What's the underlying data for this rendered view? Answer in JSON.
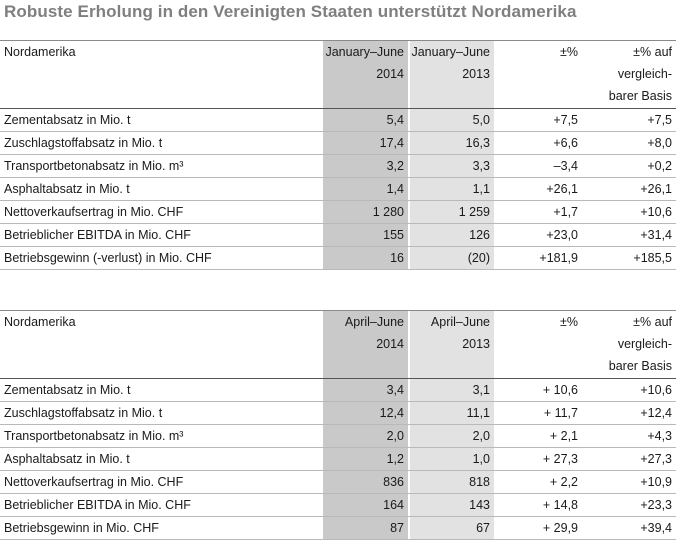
{
  "title": "Robuste Erholung in den Vereinigten Staaten unterstützt Nordamerika",
  "tables": [
    {
      "header": {
        "label": "Nordamerika",
        "col1": [
          "January–June",
          "2014"
        ],
        "col2": [
          "January–June",
          "2013"
        ],
        "col3": [
          "±%"
        ],
        "col4": [
          "±% auf",
          "vergleich-",
          "barer Basis"
        ]
      },
      "rows": [
        {
          "label": "Zementabsatz in Mio. t",
          "v1": "5,4",
          "v2": "5,0",
          "v3": "+7,5",
          "v4": "+7,5"
        },
        {
          "label": "Zuschlagstoffabsatz in Mio. t",
          "v1": "17,4",
          "v2": "16,3",
          "v3": "+6,6",
          "v4": "+8,0"
        },
        {
          "label": "Transportbetonabsatz in Mio. m³",
          "v1": "3,2",
          "v2": "3,3",
          "v3": "–3,4",
          "v4": "+0,2"
        },
        {
          "label": "Asphaltabsatz in Mio. t",
          "v1": "1,4",
          "v2": "1,1",
          "v3": "+26,1",
          "v4": "+26,1"
        },
        {
          "label": "Nettoverkaufsertrag in Mio. CHF",
          "v1": "1 280",
          "v2": "1 259",
          "v3": "+1,7",
          "v4": "+10,6"
        },
        {
          "label": "Betrieblicher EBITDA in Mio. CHF",
          "v1": "155",
          "v2": "126",
          "v3": "+23,0",
          "v4": "+31,4"
        },
        {
          "label": "Betriebsgewinn (-verlust) in Mio. CHF",
          "v1": "16",
          "v2": "(20)",
          "v3": "+181,9",
          "v4": "+185,5"
        }
      ]
    },
    {
      "header": {
        "label": "Nordamerika",
        "col1": [
          "April–June",
          "2014"
        ],
        "col2": [
          "April–June",
          "2013"
        ],
        "col3": [
          "±%"
        ],
        "col4": [
          "±% auf",
          "vergleich-",
          "barer Basis"
        ]
      },
      "rows": [
        {
          "label": "Zementabsatz in Mio. t",
          "v1": "3,4",
          "v2": "3,1",
          "v3": "+ 10,6",
          "v4": "+10,6"
        },
        {
          "label": "Zuschlagstoffabsatz in Mio. t",
          "v1": "12,4",
          "v2": "11,1",
          "v3": "+ 11,7",
          "v4": "+12,4"
        },
        {
          "label": "Transportbetonabsatz in Mio. m³",
          "v1": "2,0",
          "v2": "2,0",
          "v3": "+ 2,1",
          "v4": "+4,3"
        },
        {
          "label": "Asphaltabsatz in Mio. t",
          "v1": "1,2",
          "v2": "1,0",
          "v3": "+ 27,3",
          "v4": "+27,3"
        },
        {
          "label": "Nettoverkaufsertrag in Mio. CHF",
          "v1": "836",
          "v2": "818",
          "v3": "+ 2,2",
          "v4": "+10,9"
        },
        {
          "label": "Betrieblicher EBITDA in Mio. CHF",
          "v1": "164",
          "v2": "143",
          "v3": "+ 14,8",
          "v4": "+23,3"
        },
        {
          "label": "Betriebsgewinn in Mio. CHF",
          "v1": "87",
          "v2": "67",
          "v3": "+ 29,9",
          "v4": "+39,4"
        }
      ]
    }
  ]
}
